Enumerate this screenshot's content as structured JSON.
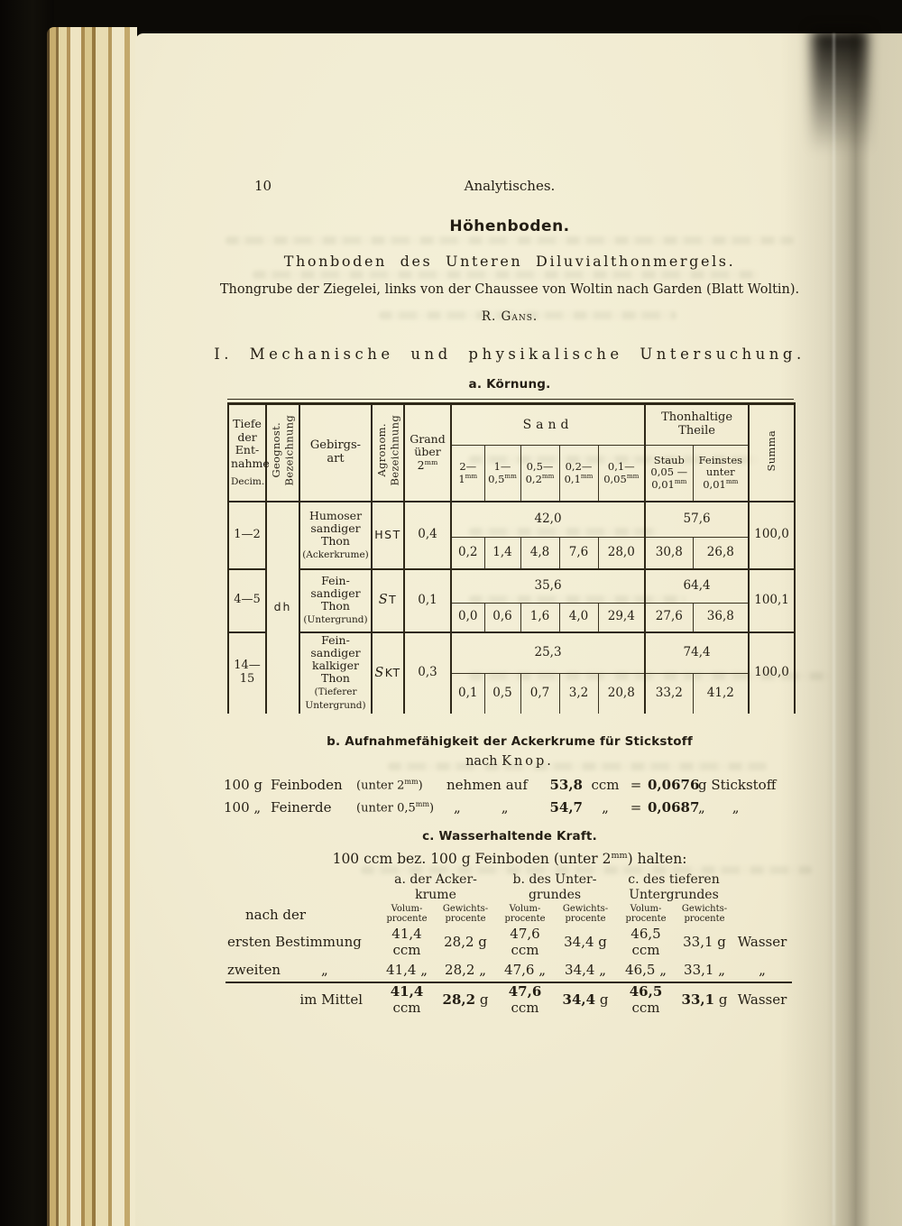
{
  "page": {
    "number": "10",
    "running_header": "Analytisches.",
    "title": "Höhenboden.",
    "subtitle": "Thonboden des Unteren Diluvialthonmergels.",
    "location_line": "Thongrube der Ziegelei, links von der Chaussee von Woltin nach Garden (Blatt Woltin).",
    "author": "R. Gans.",
    "section1_heading": "I. Mechanische und physikalische Untersuchung."
  },
  "koernung": {
    "heading": "a. Körnung.",
    "header": {
      "tiefe": "Tiefe\nder\nEnt-\nnahme",
      "tiefe_unit": "Decim.",
      "geognost": "Geognost.\nBezeichnung",
      "gebirgsart": "Gebirgs-\nart",
      "agronom": "Agronom.\nBezeichnung",
      "grand": "Grand\nüber\n2mm",
      "sand": "Sand",
      "sand_sub": [
        "2—\n1mm",
        "1—\n0,5mm",
        "0,5—\n0,2mm",
        "0,2—\n0,1mm",
        "0,1—\n0,05mm"
      ],
      "thon": "Thonhaltige\nTheile",
      "thon_sub": [
        "Staub\n0,05 —\n0,01mm",
        "Feinstes\nunter\n0,01mm"
      ],
      "summa": "Summa"
    },
    "geognost_value": "dh",
    "rows": [
      {
        "tiefe": "1—2",
        "gebirgsart": "Humoser\nsandiger\nThon\n(Ackerkrume)",
        "agronom": "HST",
        "grand": "0,4",
        "sand_total": "42,0",
        "sand": [
          "0,2",
          "1,4",
          "4,8",
          "7,6",
          "28,0"
        ],
        "thon_total": "57,6",
        "thon": [
          "30,8",
          "26,8"
        ],
        "summa": "100,0"
      },
      {
        "tiefe": "4—5",
        "gebirgsart": "Fein-\nsandiger\nThon\n(Untergrund)",
        "agronom": "ST",
        "grand": "0,1",
        "sand_total": "35,6",
        "sand": [
          "0,0",
          "0,6",
          "1,6",
          "4,0",
          "29,4"
        ],
        "thon_total": "64,4",
        "thon": [
          "27,6",
          "36,8"
        ],
        "summa": "100,1"
      },
      {
        "tiefe": "14—15",
        "gebirgsart": "Fein-\nsandiger\nkalkiger\nThon\n(Tieferer\nUntergrund)",
        "agronom": "SKT",
        "grand": "0,3",
        "sand_total": "25,3",
        "sand": [
          "0,1",
          "0,5",
          "0,7",
          "3,2",
          "20,8"
        ],
        "thon_total": "74,4",
        "thon": [
          "33,2",
          "41,2"
        ],
        "summa": "100,0"
      }
    ]
  },
  "stickstoff": {
    "heading": "b. Aufnahmefähigkeit der Ackerkrume für Stickstoff",
    "sub_prefix": "nach",
    "sub_name": "Knop.",
    "line1": {
      "qty": "100 g",
      "material": "Feinboden",
      "size": "(unter 2mm)",
      "verb": "nehmen auf",
      "v1": "53,8",
      "u1": "ccm",
      "eq": "=",
      "v2": "0,0676",
      "u2": "g Stickstoff"
    },
    "line2": {
      "qty": "100 „",
      "material": "Feinerde",
      "size": "(unter 0,5mm)",
      "verb": "„   „",
      "v1": "54,7",
      "u1": "„",
      "eq": "=",
      "v2": "0,0687",
      "u2": "„   „"
    }
  },
  "wasserkraft": {
    "heading": "c. Wasserhaltende Kraft.",
    "intro": "100 ccm bez. 100 g Feinboden (unter 2mm) halten:",
    "groups": [
      "a. der Acker-\nkrume",
      "b. des Unter-\ngrundes",
      "c. des tieferen\nUntergrundes"
    ],
    "subcols": [
      "Volum-\nprocente",
      "Gewichts-\nprocente",
      "Volum-\nprocente",
      "Gewichts-\nprocente",
      "Volum-\nprocente",
      "Gewichts-\nprocente"
    ],
    "row_label_prefix": "nach der",
    "rows": [
      {
        "label": "ersten Bestimmung",
        "values": [
          "41,4 ccm",
          "28,2 g",
          "47,6 ccm",
          "34,4 g",
          "46,5 ccm",
          "33,1 g"
        ],
        "suffix": "Wasser"
      },
      {
        "label": "zweiten   „",
        "values": [
          "41,4 „",
          "28,2 „",
          "47,6 „",
          "34,4 „",
          "46,5 „",
          "33,1 „"
        ],
        "suffix": "„"
      },
      {
        "label": "im Mittel",
        "values": [
          "41,4 ccm",
          "28,2 g",
          "47,6 ccm",
          "34,4 g",
          "46,5 ccm",
          "33,1 g"
        ],
        "suffix": "Wasser"
      }
    ]
  }
}
